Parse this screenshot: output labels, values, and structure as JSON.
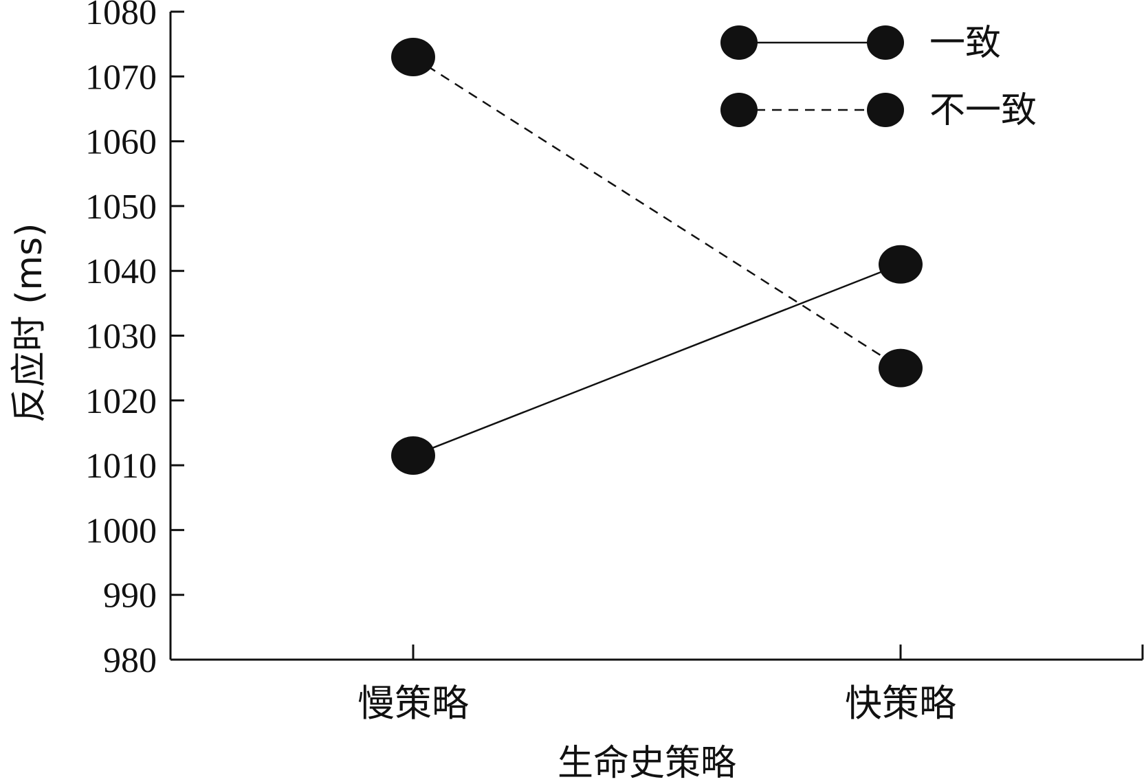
{
  "chart_data": {
    "type": "line",
    "categories": [
      "慢策略",
      "快策略"
    ],
    "series": [
      {
        "name": "一致",
        "values": [
          1011.5,
          1041
        ],
        "dash": "solid"
      },
      {
        "name": "不一致",
        "values": [
          1073,
          1025
        ],
        "dash": "dashed"
      }
    ],
    "xlabel": "生命史策略",
    "ylabel": "反应时 (ms)",
    "ylim": [
      980,
      1080
    ],
    "yticks": [
      980,
      990,
      1000,
      1010,
      1020,
      1030,
      1040,
      1050,
      1060,
      1070,
      1080
    ],
    "grid": false,
    "legend_position": "top-right",
    "colors": {
      "line": "#111111",
      "marker": "#111111"
    }
  }
}
